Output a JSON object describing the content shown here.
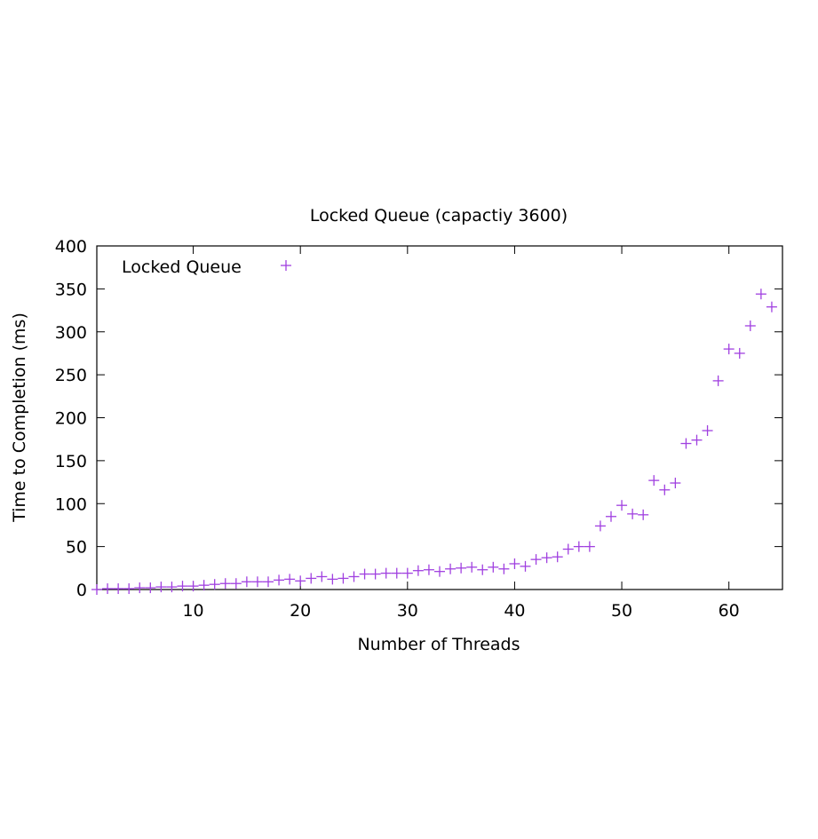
{
  "chart_data": {
    "type": "scatter",
    "title": "Locked Queue (capactiy 3600)",
    "xlabel": "Number of Threads",
    "ylabel": "Time to Completion (ms)",
    "xlim": [
      1,
      65
    ],
    "ylim": [
      0,
      400
    ],
    "xticks": [
      10,
      20,
      30,
      40,
      50,
      60
    ],
    "yticks": [
      0,
      50,
      100,
      150,
      200,
      250,
      300,
      350,
      400
    ],
    "grid": false,
    "legend_position": "top-left",
    "series": [
      {
        "name": "Locked Queue",
        "marker": "plus",
        "color": "#a040e0",
        "x": [
          1,
          2,
          3,
          4,
          5,
          6,
          7,
          8,
          9,
          10,
          11,
          12,
          13,
          14,
          15,
          16,
          17,
          18,
          19,
          20,
          21,
          22,
          23,
          24,
          25,
          26,
          27,
          28,
          29,
          30,
          31,
          32,
          33,
          34,
          35,
          36,
          37,
          38,
          39,
          40,
          41,
          42,
          43,
          44,
          45,
          46,
          47,
          48,
          49,
          50,
          51,
          52,
          53,
          54,
          55,
          56,
          57,
          58,
          59,
          60,
          61,
          62,
          63,
          64
        ],
        "y": [
          0,
          1,
          1,
          1,
          2,
          2,
          3,
          3,
          4,
          4,
          5,
          6,
          7,
          7,
          9,
          9,
          9,
          11,
          12,
          10,
          13,
          15,
          12,
          13,
          15,
          18,
          18,
          19,
          19,
          19,
          22,
          23,
          21,
          24,
          25,
          26,
          23,
          26,
          24,
          30,
          27,
          35,
          37,
          38,
          47,
          50,
          50,
          74,
          85,
          98,
          88,
          87,
          127,
          116,
          124,
          170,
          174,
          185,
          243,
          280,
          275,
          307,
          344,
          329
        ]
      }
    ]
  }
}
